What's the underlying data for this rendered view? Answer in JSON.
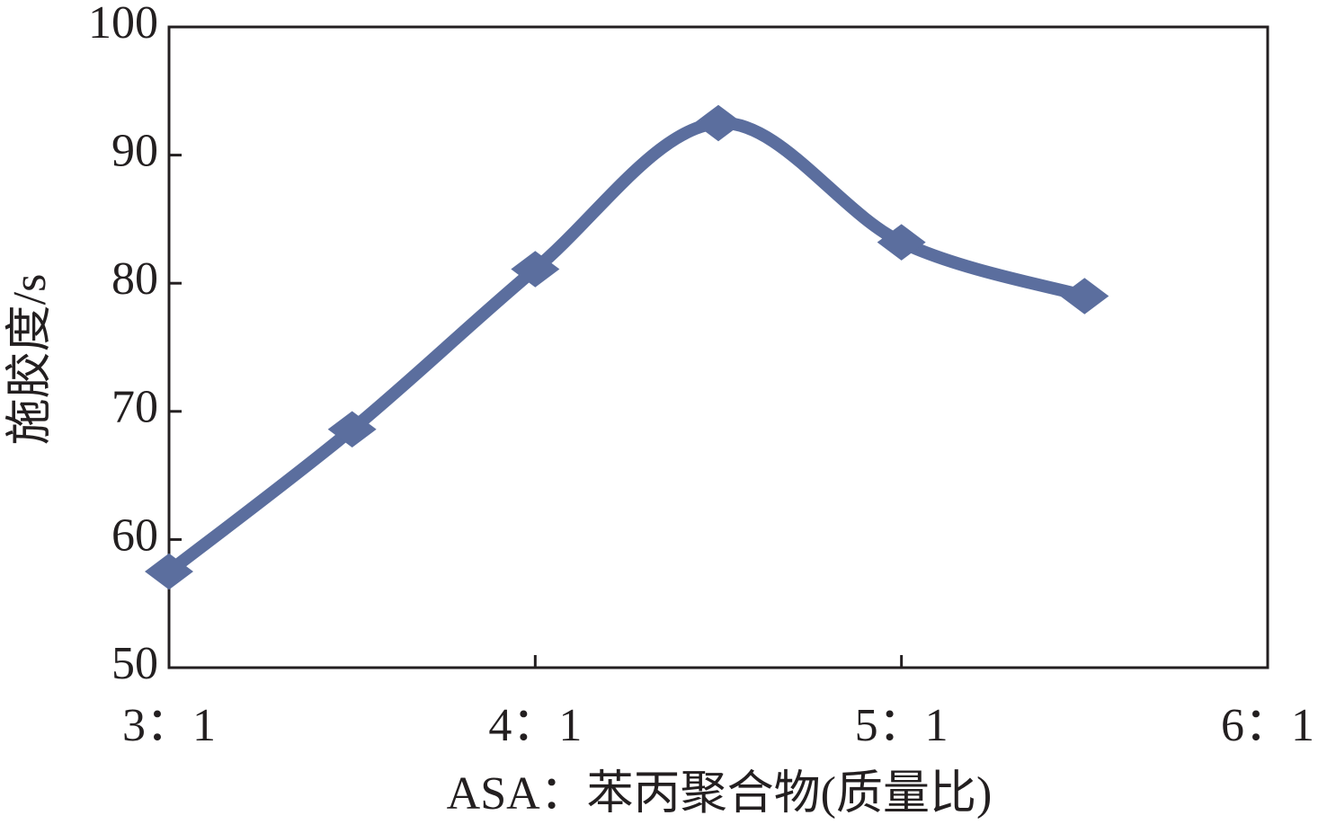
{
  "chart_data": {
    "type": "line",
    "xlabel": "ASA：苯丙聚合物(质量比)",
    "ylabel": "施胶度/s",
    "x": [
      3,
      3.5,
      4,
      4.5,
      5,
      5.5
    ],
    "values": [
      57.5,
      68.6,
      81.1,
      92.5,
      83.2,
      79.0
    ],
    "color": "#5b6e9e",
    "xlim": [
      3,
      6
    ],
    "xticks": [
      {
        "value": 3,
        "label": "3：1"
      },
      {
        "value": 4,
        "label": "4：1"
      },
      {
        "value": 5,
        "label": "5：1"
      },
      {
        "value": 6,
        "label": "6：1"
      }
    ],
    "ylim": [
      50,
      100
    ],
    "yticks": [
      50,
      60,
      70,
      80,
      90,
      100
    ],
    "grid": false
  }
}
